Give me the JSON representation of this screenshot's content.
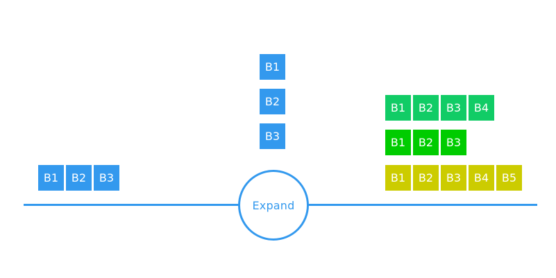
{
  "colors": {
    "line": "#3399ee",
    "blue": "#3399ee",
    "green": "#11cc66",
    "bright_green": "#00cc00",
    "yellow": "#cccc00"
  },
  "hub": {
    "label": "Expand"
  },
  "groups": [
    {
      "id": "left",
      "color": "#3399ee",
      "boxes": [
        "B1",
        "B2",
        "B3"
      ]
    },
    {
      "id": "top",
      "color": "#3399ee",
      "boxes": [
        "B1",
        "B2",
        "B3"
      ]
    },
    {
      "id": "right-1",
      "color": "#11cc66",
      "boxes": [
        "B1",
        "B2",
        "B3",
        "B4"
      ]
    },
    {
      "id": "right-2",
      "color": "#00cc00",
      "boxes": [
        "B1",
        "B2",
        "B3"
      ]
    },
    {
      "id": "right-3",
      "color": "#cccc00",
      "boxes": [
        "B1",
        "B2",
        "B3",
        "B4",
        "B5"
      ]
    }
  ]
}
